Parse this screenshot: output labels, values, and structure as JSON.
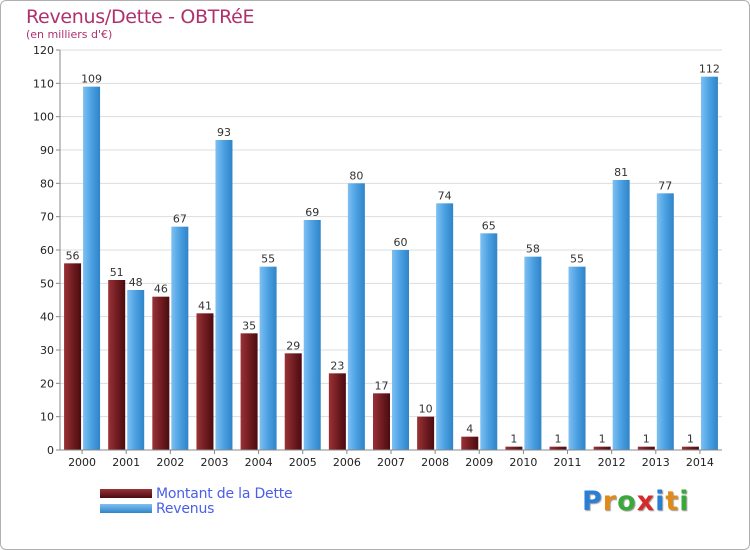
{
  "title": "Revenus/Dette - OBTRéE",
  "subtitle": "(en milliers d'€)",
  "chart_data": {
    "type": "bar",
    "categories": [
      "2000",
      "2001",
      "2002",
      "2003",
      "2004",
      "2005",
      "2006",
      "2007",
      "2008",
      "2009",
      "2010",
      "2011",
      "2012",
      "2013",
      "2014"
    ],
    "series": [
      {
        "name": "Montant de la Dette",
        "color": "#6b1a1e",
        "values": [
          56,
          51,
          46,
          41,
          35,
          29,
          23,
          17,
          10,
          4,
          1,
          1,
          1,
          1,
          1
        ]
      },
      {
        "name": "Revenus",
        "color": "#4a9ee0",
        "values": [
          109,
          48,
          67,
          93,
          55,
          69,
          80,
          60,
          74,
          65,
          58,
          55,
          81,
          77,
          112
        ]
      }
    ],
    "ylim": [
      0,
      120
    ],
    "yticks": [
      0,
      10,
      20,
      30,
      40,
      50,
      60,
      70,
      80,
      90,
      100,
      110,
      120
    ],
    "grid": true,
    "legend": "bottom-left"
  },
  "legend": {
    "debt_label": "Montant de la Dette",
    "revenue_label": "Revenus"
  },
  "logo": {
    "letters": [
      "P",
      "r",
      "o",
      "x",
      "i",
      "t",
      "i"
    ],
    "colors": [
      "#2a7fd4",
      "#e08a1a",
      "#3aa83a",
      "#d42a2a",
      "#2a7fd4",
      "#e08a1a",
      "#3aa83a"
    ]
  }
}
